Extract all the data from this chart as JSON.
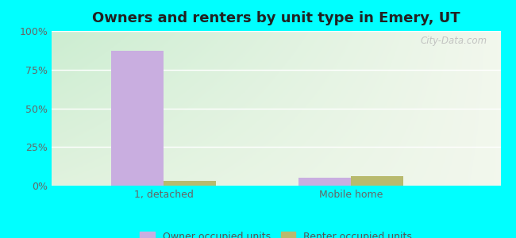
{
  "title": "Owners and renters by unit type in Emery, UT",
  "categories": [
    "1, detached",
    "Mobile home"
  ],
  "owner_values": [
    87,
    5
  ],
  "renter_values": [
    3,
    6
  ],
  "owner_color": "#c9aee0",
  "renter_color": "#b8ba6e",
  "bar_width": 0.28,
  "ylim": [
    0,
    100
  ],
  "yticks": [
    0,
    25,
    50,
    75,
    100
  ],
  "ytick_labels": [
    "0%",
    "25%",
    "50%",
    "75%",
    "100%"
  ],
  "outer_bg": "#00ffff",
  "title_fontsize": 13,
  "legend_label_owner": "Owner occupied units",
  "legend_label_renter": "Renter occupied units",
  "watermark": "City-Data.com",
  "grid_color": "#e0e8e0",
  "xlim": [
    -0.6,
    1.8
  ]
}
